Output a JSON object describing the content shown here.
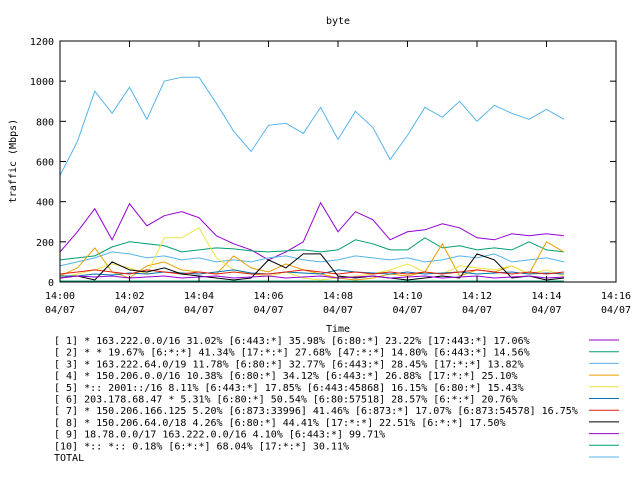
{
  "chart_data": {
    "type": "line",
    "title": "byte",
    "xlabel": "Time",
    "ylabel": "traffic (Mbps)",
    "ylim": [
      0,
      1200
    ],
    "yticks": [
      0,
      200,
      400,
      600,
      800,
      1000,
      1200
    ],
    "xlim": [
      0,
      16
    ],
    "xticks": [
      {
        "v": 0,
        "time": "14:00",
        "date": "04/07"
      },
      {
        "v": 2,
        "time": "14:02",
        "date": "04/07"
      },
      {
        "v": 4,
        "time": "14:04",
        "date": "04/07"
      },
      {
        "v": 6,
        "time": "14:06",
        "date": "04/07"
      },
      {
        "v": 8,
        "time": "14:08",
        "date": "04/07"
      },
      {
        "v": 10,
        "time": "14:10",
        "date": "04/07"
      },
      {
        "v": 12,
        "time": "14:12",
        "date": "04/07"
      },
      {
        "v": 14,
        "time": "14:14",
        "date": "04/07"
      },
      {
        "v": 16,
        "time": "14:16",
        "date": "04/07"
      }
    ],
    "grid": false,
    "legend_position": "bottom",
    "x": [
      0,
      0.5,
      1,
      1.5,
      2,
      2.5,
      3,
      3.5,
      4,
      4.5,
      5,
      5.5,
      6,
      6.5,
      7,
      7.5,
      8,
      8.5,
      9,
      9.5,
      10,
      10.5,
      11,
      11.5,
      12,
      12.5,
      13,
      13.5,
      14,
      14.5
    ],
    "series": [
      {
        "label": "[ 1] * 163.222.0.0/16 31.02%  [6:443:*] 35.98% [6:80:*] 23.22% [17:443:*] 17.06%",
        "color": "#9400d3",
        "values": [
          150,
          250,
          365,
          210,
          390,
          280,
          330,
          350,
          320,
          230,
          190,
          160,
          110,
          150,
          200,
          395,
          250,
          350,
          310,
          210,
          250,
          260,
          290,
          270,
          220,
          210,
          240,
          230,
          240,
          230
        ]
      },
      {
        "label": "[ 2] * * 19.67%  [6:*:*] 41.34% [17:*:*] 27.68% [47:*:*] 14.80% [6:443:*] 14.56%",
        "color": "#009e73",
        "values": [
          110,
          120,
          130,
          175,
          200,
          190,
          180,
          150,
          160,
          170,
          165,
          155,
          150,
          155,
          160,
          150,
          160,
          210,
          190,
          160,
          160,
          220,
          170,
          180,
          160,
          170,
          160,
          200,
          160,
          150
        ]
      },
      {
        "label": "[ 3] * 163.222.64.0/19 11.78%  [6:80:*] 32.77% [6:443:*] 28.45% [17:*:*] 13.82%",
        "color": "#56b4e9",
        "values": [
          80,
          100,
          120,
          150,
          140,
          120,
          130,
          110,
          120,
          100,
          110,
          100,
          120,
          130,
          110,
          100,
          110,
          130,
          120,
          110,
          120,
          100,
          110,
          130,
          120,
          140,
          100,
          110,
          120,
          100
        ]
      },
      {
        "label": "[ 4] * 150.206.0.0/16 10.38%  [6:80:*] 34.12% [6:443:*] 26.88% [17:*:*] 25.10%",
        "color": "#e69f00",
        "values": [
          30,
          70,
          170,
          50,
          20,
          80,
          100,
          60,
          50,
          40,
          130,
          70,
          50,
          90,
          60,
          40,
          20,
          10,
          20,
          40,
          30,
          50,
          190,
          30,
          60,
          50,
          80,
          40,
          200,
          150
        ]
      },
      {
        "label": "[ 5] *:: 2001::/16 8.11%  [6:443:*] 17.85% [6:443:45868] 16.15% [6:80:*] 15.43%",
        "color": "#f0e442",
        "values": [
          20,
          40,
          60,
          90,
          70,
          40,
          220,
          220,
          270,
          120,
          60,
          40,
          30,
          50,
          20,
          10,
          20,
          30,
          40,
          60,
          90,
          50,
          40,
          80,
          70,
          60,
          80,
          40,
          60,
          30
        ]
      },
      {
        "label": "[ 6] 203.178.68.47 * 5.31%  [6:80:*] 50.54% [6:80:57518] 28.57% [6:*:*] 20.76%",
        "color": "#0072b2",
        "values": [
          30,
          30,
          40,
          35,
          45,
          40,
          50,
          45,
          40,
          50,
          60,
          45,
          40,
          50,
          45,
          40,
          60,
          50,
          45,
          40,
          50,
          40,
          45,
          50,
          40,
          45,
          50,
          40,
          45,
          40
        ]
      },
      {
        "label": "[ 7] * 150.206.166.125 5.20%  [6:873:33996] 41.46% [6:873:*] 17.07% [6:873:54578] 16.75%",
        "color": "#e51e10",
        "values": [
          40,
          50,
          60,
          50,
          40,
          60,
          50,
          40,
          50,
          40,
          50,
          40,
          40,
          50,
          60,
          50,
          40,
          50,
          40,
          50,
          40,
          50,
          40,
          50,
          60,
          50,
          40,
          50,
          40,
          50
        ]
      },
      {
        "label": "[ 8] * 150.206.64.0/18 4.26%  [6:80:*] 44.41% [17:*:*] 22.51% [6:*:*] 17.50%",
        "color": "#000000",
        "values": [
          20,
          30,
          10,
          100,
          60,
          50,
          70,
          40,
          30,
          20,
          10,
          20,
          110,
          70,
          140,
          140,
          30,
          20,
          30,
          20,
          10,
          20,
          30,
          20,
          140,
          110,
          20,
          30,
          10,
          20
        ]
      },
      {
        "label": "[ 9] 18.78.0.0/17 163.222.0.0/16 4.10%  [6:443:*] 99.71%",
        "color": "#9400d3",
        "values": [
          20,
          30,
          25,
          30,
          20,
          25,
          30,
          20,
          25,
          30,
          20,
          25,
          30,
          20,
          25,
          30,
          20,
          25,
          30,
          20,
          25,
          30,
          20,
          25,
          30,
          20,
          25,
          30,
          20,
          25
        ]
      },
      {
        "label": "[10] *:: *:: 0.18%  [6:*:*] 68.04% [17:*:*] 30.11%",
        "color": "#009e73",
        "values": [
          5,
          5,
          5,
          5,
          5,
          5,
          5,
          5,
          5,
          5,
          5,
          5,
          5,
          5,
          5,
          5,
          5,
          5,
          5,
          5,
          5,
          5,
          5,
          5,
          5,
          5,
          5,
          5,
          5,
          5
        ]
      },
      {
        "label": "TOTAL",
        "color": "#56b4e9",
        "values": [
          530,
          700,
          950,
          840,
          970,
          810,
          1000,
          1020,
          1020,
          890,
          750,
          650,
          780,
          790,
          740,
          870,
          710,
          850,
          770,
          610,
          730,
          870,
          820,
          900,
          800,
          880,
          840,
          810,
          860,
          810
        ]
      }
    ]
  }
}
